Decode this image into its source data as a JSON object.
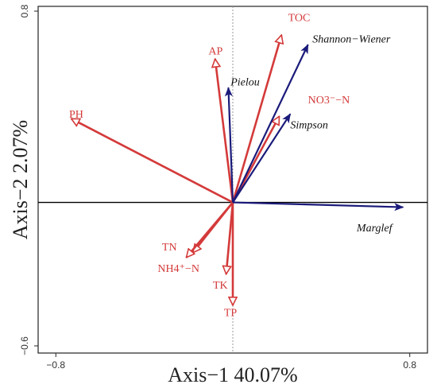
{
  "chart_data": {
    "type": "biplot",
    "xlabel": "Axis−1  40.07%",
    "ylabel": "Axis−2  2.07%",
    "xlim": [
      -0.88,
      0.88
    ],
    "ylim": [
      -0.63,
      0.82
    ],
    "x_ticks": [
      {
        "value": -0.8,
        "label": "−0.8"
      },
      {
        "value": 0.8,
        "label": "0.8"
      }
    ],
    "y_ticks": [
      {
        "value": 0.8,
        "label": "0.8"
      },
      {
        "value": -0.6,
        "label": "−0.6"
      }
    ],
    "colors": {
      "environment": "#d43a3a",
      "species": "#1a1a7a",
      "baseline": "#000000",
      "zero_line": "#999999"
    },
    "series": [
      {
        "group": "environment",
        "style": "open-arrow",
        "vectors": [
          {
            "name": "TOC",
            "x": 0.22,
            "y": 0.7,
            "lx": 0.25,
            "ly": 0.77
          },
          {
            "name": "AP",
            "x": -0.08,
            "y": 0.6,
            "lx": -0.11,
            "ly": 0.63
          },
          {
            "name": "PH",
            "x": -0.73,
            "y": 0.35,
            "lx": -0.74,
            "ly": 0.365
          },
          {
            "name": "NO3⁻−N",
            "x": 0.21,
            "y": 0.36,
            "lx": 0.34,
            "ly": 0.425
          },
          {
            "name": "TN",
            "x": -0.18,
            "y": -0.21,
            "lx": -0.32,
            "ly": -0.19
          },
          {
            "name": "NH4⁺−N",
            "x": -0.21,
            "y": -0.23,
            "lx": -0.34,
            "ly": -0.28
          },
          {
            "name": "TK",
            "x": -0.03,
            "y": -0.3,
            "lx": -0.09,
            "ly": -0.35
          },
          {
            "name": "TP",
            "x": 0.0,
            "y": -0.43,
            "lx": -0.04,
            "ly": -0.465
          }
        ]
      },
      {
        "group": "species",
        "style": "solid-arrow",
        "vectors": [
          {
            "name": "Shannon−Wiener",
            "x": 0.34,
            "y": 0.66,
            "lx": 0.36,
            "ly": 0.68
          },
          {
            "name": "Pielou",
            "x": -0.02,
            "y": 0.48,
            "lx": -0.01,
            "ly": 0.5
          },
          {
            "name": "Simpson",
            "x": 0.26,
            "y": 0.37,
            "lx": 0.26,
            "ly": 0.32
          },
          {
            "name": "Marglef",
            "x": 0.77,
            "y": -0.02,
            "lx": 0.56,
            "ly": -0.11
          }
        ]
      }
    ],
    "grid": false,
    "legend": "none"
  }
}
